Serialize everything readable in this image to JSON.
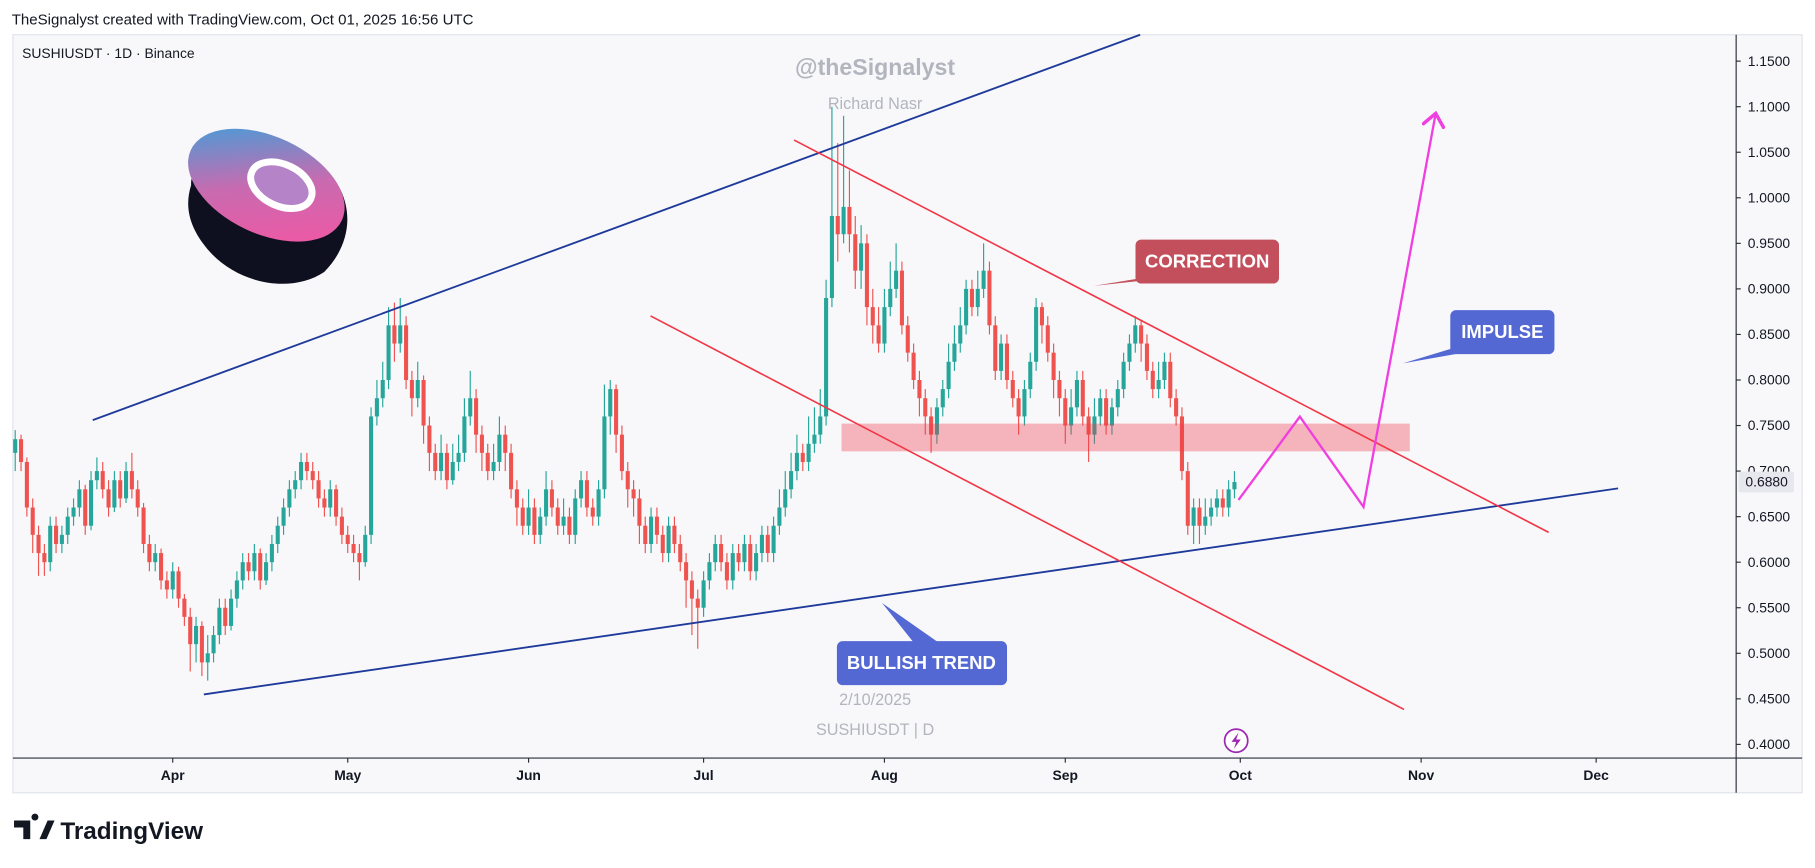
{
  "header": "TheSignalyst created with TradingView.com, Oct 01, 2025 16:56 UTC",
  "footer_logo": "TradingView",
  "chart_data": {
    "type": "candlestick",
    "symbol": "SUSHIUSDT · 1D · Binance",
    "watermark": "@theSignalyst",
    "author": "Richard Nasr",
    "date_stamp": "2/10/2025",
    "symbol_stamp": "SUSHIUSDT | D",
    "annotations": [
      "CORRECTION",
      "IMPULSE",
      "BULLISH TREND"
    ],
    "up_color": "#26a69a",
    "down_color": "#ef5350",
    "xlim": [
      -27.4,
      268
    ],
    "xticks": [
      {
        "value": 0,
        "label": "Apr"
      },
      {
        "value": 30,
        "label": "May"
      },
      {
        "value": 61,
        "label": "Jun"
      },
      {
        "value": 91,
        "label": "Jul"
      },
      {
        "value": 122,
        "label": "Aug"
      },
      {
        "value": 153,
        "label": "Sep"
      },
      {
        "value": 183,
        "label": "Oct"
      },
      {
        "value": 214,
        "label": "Nov"
      },
      {
        "value": 244,
        "label": "Dec"
      }
    ],
    "ylim": [
      0.385,
      1.179
    ],
    "yticks": [
      {
        "value": 0.4,
        "label": "0.4000"
      },
      {
        "value": 0.45,
        "label": "0.4500"
      },
      {
        "value": 0.5,
        "label": "0.5000"
      },
      {
        "value": 0.55,
        "label": "0.5500"
      },
      {
        "value": 0.6,
        "label": "0.6000"
      },
      {
        "value": 0.65,
        "label": "0.6500"
      },
      {
        "value": 0.7,
        "label": "0.7000"
      },
      {
        "value": 0.75,
        "label": "0.7500"
      },
      {
        "value": 0.8,
        "label": "0.8000"
      },
      {
        "value": 0.85,
        "label": "0.8500"
      },
      {
        "value": 0.9,
        "label": "0.9000"
      },
      {
        "value": 0.95,
        "label": "0.9500"
      },
      {
        "value": 1.0,
        "label": "1.0000"
      },
      {
        "value": 1.05,
        "label": "1.0500"
      },
      {
        "value": 1.1,
        "label": "1.1000"
      },
      {
        "value": 1.15,
        "label": "1.1500"
      }
    ],
    "last_price": {
      "value": 0.688,
      "label": "0.6880"
    },
    "x": [
      -27,
      -26,
      -25,
      -24,
      -23,
      -22,
      -21,
      -20,
      -19,
      -18,
      -17,
      -16,
      -15,
      -14,
      -13,
      -12,
      -11,
      -10,
      -9,
      -8,
      -7,
      -6,
      -5,
      -4,
      -3,
      -2,
      -1,
      0,
      1,
      2,
      3,
      4,
      5,
      6,
      7,
      8,
      9,
      10,
      11,
      12,
      13,
      14,
      15,
      16,
      17,
      18,
      19,
      20,
      21,
      22,
      23,
      24,
      25,
      26,
      27,
      28,
      29,
      30,
      31,
      32,
      33,
      34,
      35,
      36,
      37,
      38,
      39,
      40,
      41,
      42,
      43,
      44,
      45,
      46,
      47,
      48,
      49,
      50,
      51,
      52,
      53,
      54,
      55,
      56,
      57,
      58,
      59,
      60,
      61,
      62,
      63,
      64,
      65,
      66,
      67,
      68,
      69,
      70,
      71,
      72,
      73,
      74,
      75,
      76,
      77,
      78,
      79,
      80,
      81,
      82,
      83,
      84,
      85,
      86,
      87,
      88,
      89,
      90,
      91,
      92,
      93,
      94,
      95,
      96,
      97,
      98,
      99,
      100,
      101,
      102,
      103,
      104,
      105,
      106,
      107,
      108,
      109,
      110,
      111,
      112,
      113,
      114,
      115,
      116,
      117,
      118,
      119,
      120,
      121,
      122,
      123,
      124,
      125,
      126,
      127,
      128,
      129,
      130,
      131,
      132,
      133,
      134,
      135,
      136,
      137,
      138,
      139,
      140,
      141,
      142,
      143,
      144,
      145,
      146,
      147,
      148,
      149,
      150,
      151,
      152,
      153,
      154,
      155,
      156,
      157,
      158,
      159,
      160,
      161,
      162,
      163,
      164,
      165,
      166,
      167,
      168,
      169,
      170,
      171,
      172,
      173,
      174,
      175,
      176,
      177,
      178,
      179,
      180,
      181,
      182
    ],
    "ohlc": [
      [
        0.72,
        0.745,
        0.7,
        0.735
      ],
      [
        0.735,
        0.74,
        0.7,
        0.71
      ],
      [
        0.71,
        0.715,
        0.65,
        0.66
      ],
      [
        0.66,
        0.67,
        0.61,
        0.63
      ],
      [
        0.63,
        0.64,
        0.585,
        0.61
      ],
      [
        0.61,
        0.62,
        0.585,
        0.6
      ],
      [
        0.6,
        0.65,
        0.59,
        0.64
      ],
      [
        0.64,
        0.65,
        0.61,
        0.62
      ],
      [
        0.62,
        0.64,
        0.61,
        0.63
      ],
      [
        0.63,
        0.66,
        0.62,
        0.65
      ],
      [
        0.65,
        0.67,
        0.64,
        0.66
      ],
      [
        0.66,
        0.69,
        0.65,
        0.68
      ],
      [
        0.68,
        0.685,
        0.63,
        0.64
      ],
      [
        0.64,
        0.7,
        0.635,
        0.69
      ],
      [
        0.69,
        0.715,
        0.68,
        0.7
      ],
      [
        0.7,
        0.71,
        0.67,
        0.68
      ],
      [
        0.68,
        0.69,
        0.65,
        0.66
      ],
      [
        0.66,
        0.7,
        0.655,
        0.69
      ],
      [
        0.69,
        0.7,
        0.66,
        0.67
      ],
      [
        0.67,
        0.71,
        0.665,
        0.7
      ],
      [
        0.7,
        0.72,
        0.67,
        0.68
      ],
      [
        0.68,
        0.69,
        0.65,
        0.66
      ],
      [
        0.66,
        0.665,
        0.61,
        0.62
      ],
      [
        0.62,
        0.63,
        0.59,
        0.6
      ],
      [
        0.6,
        0.62,
        0.59,
        0.61
      ],
      [
        0.61,
        0.615,
        0.57,
        0.58
      ],
      [
        0.58,
        0.59,
        0.56,
        0.57
      ],
      [
        0.57,
        0.6,
        0.56,
        0.59
      ],
      [
        0.59,
        0.595,
        0.55,
        0.56
      ],
      [
        0.56,
        0.565,
        0.53,
        0.54
      ],
      [
        0.54,
        0.55,
        0.48,
        0.51
      ],
      [
        0.51,
        0.54,
        0.49,
        0.53
      ],
      [
        0.53,
        0.535,
        0.475,
        0.49
      ],
      [
        0.49,
        0.52,
        0.47,
        0.5
      ],
      [
        0.5,
        0.53,
        0.49,
        0.52
      ],
      [
        0.52,
        0.56,
        0.51,
        0.55
      ],
      [
        0.55,
        0.56,
        0.52,
        0.53
      ],
      [
        0.53,
        0.57,
        0.525,
        0.56
      ],
      [
        0.56,
        0.59,
        0.55,
        0.58
      ],
      [
        0.58,
        0.61,
        0.57,
        0.6
      ],
      [
        0.6,
        0.61,
        0.58,
        0.59
      ],
      [
        0.59,
        0.62,
        0.58,
        0.61
      ],
      [
        0.61,
        0.615,
        0.57,
        0.58
      ],
      [
        0.58,
        0.61,
        0.575,
        0.6
      ],
      [
        0.6,
        0.63,
        0.59,
        0.62
      ],
      [
        0.62,
        0.65,
        0.61,
        0.64
      ],
      [
        0.64,
        0.67,
        0.63,
        0.66
      ],
      [
        0.66,
        0.69,
        0.65,
        0.68
      ],
      [
        0.68,
        0.7,
        0.67,
        0.69
      ],
      [
        0.69,
        0.72,
        0.68,
        0.71
      ],
      [
        0.71,
        0.72,
        0.69,
        0.7
      ],
      [
        0.7,
        0.71,
        0.68,
        0.69
      ],
      [
        0.69,
        0.7,
        0.66,
        0.67
      ],
      [
        0.67,
        0.68,
        0.65,
        0.66
      ],
      [
        0.66,
        0.69,
        0.65,
        0.68
      ],
      [
        0.68,
        0.685,
        0.64,
        0.65
      ],
      [
        0.65,
        0.66,
        0.62,
        0.63
      ],
      [
        0.63,
        0.64,
        0.61,
        0.62
      ],
      [
        0.62,
        0.63,
        0.6,
        0.61
      ],
      [
        0.61,
        0.62,
        0.58,
        0.6
      ],
      [
        0.6,
        0.64,
        0.595,
        0.63
      ],
      [
        0.63,
        0.77,
        0.62,
        0.76
      ],
      [
        0.76,
        0.8,
        0.75,
        0.78
      ],
      [
        0.78,
        0.82,
        0.77,
        0.8
      ],
      [
        0.8,
        0.88,
        0.79,
        0.86
      ],
      [
        0.86,
        0.885,
        0.82,
        0.84
      ],
      [
        0.84,
        0.89,
        0.83,
        0.86
      ],
      [
        0.86,
        0.87,
        0.79,
        0.8
      ],
      [
        0.8,
        0.81,
        0.76,
        0.78
      ],
      [
        0.78,
        0.82,
        0.77,
        0.8
      ],
      [
        0.8,
        0.805,
        0.73,
        0.75
      ],
      [
        0.75,
        0.76,
        0.7,
        0.72
      ],
      [
        0.72,
        0.73,
        0.69,
        0.7
      ],
      [
        0.7,
        0.74,
        0.69,
        0.72
      ],
      [
        0.72,
        0.73,
        0.68,
        0.69
      ],
      [
        0.69,
        0.73,
        0.685,
        0.71
      ],
      [
        0.71,
        0.74,
        0.7,
        0.72
      ],
      [
        0.72,
        0.78,
        0.71,
        0.76
      ],
      [
        0.76,
        0.81,
        0.75,
        0.78
      ],
      [
        0.78,
        0.79,
        0.72,
        0.74
      ],
      [
        0.74,
        0.75,
        0.7,
        0.72
      ],
      [
        0.72,
        0.73,
        0.69,
        0.7
      ],
      [
        0.7,
        0.73,
        0.69,
        0.71
      ],
      [
        0.71,
        0.76,
        0.7,
        0.74
      ],
      [
        0.74,
        0.75,
        0.7,
        0.72
      ],
      [
        0.72,
        0.73,
        0.67,
        0.68
      ],
      [
        0.68,
        0.69,
        0.64,
        0.66
      ],
      [
        0.66,
        0.67,
        0.63,
        0.64
      ],
      [
        0.64,
        0.68,
        0.63,
        0.66
      ],
      [
        0.66,
        0.67,
        0.62,
        0.63
      ],
      [
        0.63,
        0.66,
        0.62,
        0.65
      ],
      [
        0.65,
        0.7,
        0.64,
        0.68
      ],
      [
        0.68,
        0.69,
        0.65,
        0.66
      ],
      [
        0.66,
        0.67,
        0.63,
        0.64
      ],
      [
        0.64,
        0.67,
        0.63,
        0.65
      ],
      [
        0.65,
        0.66,
        0.62,
        0.63
      ],
      [
        0.63,
        0.68,
        0.62,
        0.67
      ],
      [
        0.67,
        0.7,
        0.66,
        0.69
      ],
      [
        0.69,
        0.7,
        0.65,
        0.66
      ],
      [
        0.66,
        0.67,
        0.64,
        0.65
      ],
      [
        0.65,
        0.69,
        0.64,
        0.68
      ],
      [
        0.68,
        0.795,
        0.67,
        0.76
      ],
      [
        0.76,
        0.8,
        0.74,
        0.79
      ],
      [
        0.79,
        0.795,
        0.72,
        0.74
      ],
      [
        0.74,
        0.75,
        0.69,
        0.7
      ],
      [
        0.7,
        0.71,
        0.66,
        0.68
      ],
      [
        0.68,
        0.69,
        0.65,
        0.67
      ],
      [
        0.67,
        0.68,
        0.62,
        0.64
      ],
      [
        0.64,
        0.65,
        0.61,
        0.62
      ],
      [
        0.62,
        0.66,
        0.61,
        0.65
      ],
      [
        0.65,
        0.66,
        0.62,
        0.63
      ],
      [
        0.63,
        0.64,
        0.6,
        0.61
      ],
      [
        0.61,
        0.65,
        0.6,
        0.64
      ],
      [
        0.64,
        0.65,
        0.61,
        0.62
      ],
      [
        0.62,
        0.63,
        0.59,
        0.6
      ],
      [
        0.6,
        0.61,
        0.55,
        0.58
      ],
      [
        0.58,
        0.59,
        0.52,
        0.56
      ],
      [
        0.56,
        0.57,
        0.505,
        0.55
      ],
      [
        0.55,
        0.59,
        0.54,
        0.58
      ],
      [
        0.58,
        0.61,
        0.57,
        0.6
      ],
      [
        0.6,
        0.63,
        0.59,
        0.62
      ],
      [
        0.62,
        0.63,
        0.59,
        0.6
      ],
      [
        0.6,
        0.61,
        0.57,
        0.58
      ],
      [
        0.58,
        0.62,
        0.57,
        0.61
      ],
      [
        0.61,
        0.62,
        0.59,
        0.6
      ],
      [
        0.6,
        0.63,
        0.59,
        0.62
      ],
      [
        0.62,
        0.63,
        0.58,
        0.59
      ],
      [
        0.59,
        0.62,
        0.58,
        0.61
      ],
      [
        0.61,
        0.64,
        0.6,
        0.63
      ],
      [
        0.63,
        0.64,
        0.6,
        0.61
      ],
      [
        0.61,
        0.65,
        0.6,
        0.64
      ],
      [
        0.64,
        0.68,
        0.63,
        0.66
      ],
      [
        0.66,
        0.7,
        0.65,
        0.68
      ],
      [
        0.68,
        0.72,
        0.67,
        0.7
      ],
      [
        0.7,
        0.74,
        0.69,
        0.72
      ],
      [
        0.72,
        0.73,
        0.7,
        0.71
      ],
      [
        0.71,
        0.76,
        0.7,
        0.73
      ],
      [
        0.73,
        0.77,
        0.72,
        0.74
      ],
      [
        0.74,
        0.79,
        0.73,
        0.76
      ],
      [
        0.76,
        0.91,
        0.75,
        0.89
      ],
      [
        0.89,
        1.1,
        0.88,
        0.98
      ],
      [
        0.98,
        1.06,
        0.93,
        0.96
      ],
      [
        0.96,
        1.09,
        0.95,
        0.99
      ],
      [
        0.99,
        1.03,
        0.94,
        0.96
      ],
      [
        0.96,
        0.98,
        0.9,
        0.92
      ],
      [
        0.92,
        0.97,
        0.9,
        0.95
      ],
      [
        0.95,
        0.96,
        0.86,
        0.88
      ],
      [
        0.88,
        0.9,
        0.84,
        0.86
      ],
      [
        0.86,
        0.88,
        0.83,
        0.84
      ],
      [
        0.84,
        0.9,
        0.83,
        0.88
      ],
      [
        0.88,
        0.93,
        0.87,
        0.9
      ],
      [
        0.9,
        0.95,
        0.89,
        0.92
      ],
      [
        0.92,
        0.93,
        0.85,
        0.86
      ],
      [
        0.86,
        0.87,
        0.82,
        0.83
      ],
      [
        0.83,
        0.84,
        0.79,
        0.8
      ],
      [
        0.8,
        0.81,
        0.76,
        0.78
      ],
      [
        0.78,
        0.79,
        0.74,
        0.76
      ],
      [
        0.76,
        0.77,
        0.72,
        0.74
      ],
      [
        0.74,
        0.78,
        0.73,
        0.77
      ],
      [
        0.77,
        0.8,
        0.76,
        0.79
      ],
      [
        0.79,
        0.84,
        0.78,
        0.82
      ],
      [
        0.82,
        0.86,
        0.81,
        0.84
      ],
      [
        0.84,
        0.88,
        0.83,
        0.86
      ],
      [
        0.86,
        0.91,
        0.85,
        0.9
      ],
      [
        0.9,
        0.91,
        0.87,
        0.88
      ],
      [
        0.88,
        0.92,
        0.87,
        0.9
      ],
      [
        0.9,
        0.95,
        0.89,
        0.92
      ],
      [
        0.92,
        0.93,
        0.85,
        0.86
      ],
      [
        0.86,
        0.87,
        0.8,
        0.81
      ],
      [
        0.81,
        0.85,
        0.8,
        0.84
      ],
      [
        0.84,
        0.85,
        0.79,
        0.8
      ],
      [
        0.8,
        0.81,
        0.77,
        0.78
      ],
      [
        0.78,
        0.79,
        0.74,
        0.76
      ],
      [
        0.76,
        0.8,
        0.75,
        0.79
      ],
      [
        0.79,
        0.83,
        0.78,
        0.82
      ],
      [
        0.82,
        0.89,
        0.81,
        0.88
      ],
      [
        0.88,
        0.885,
        0.84,
        0.86
      ],
      [
        0.86,
        0.87,
        0.82,
        0.83
      ],
      [
        0.83,
        0.84,
        0.78,
        0.8
      ],
      [
        0.8,
        0.81,
        0.76,
        0.78
      ],
      [
        0.78,
        0.79,
        0.73,
        0.75
      ],
      [
        0.75,
        0.79,
        0.74,
        0.77
      ],
      [
        0.77,
        0.81,
        0.76,
        0.8
      ],
      [
        0.8,
        0.81,
        0.75,
        0.76
      ],
      [
        0.76,
        0.77,
        0.71,
        0.74
      ],
      [
        0.74,
        0.78,
        0.73,
        0.76
      ],
      [
        0.76,
        0.79,
        0.75,
        0.78
      ],
      [
        0.78,
        0.79,
        0.74,
        0.75
      ],
      [
        0.75,
        0.78,
        0.74,
        0.77
      ],
      [
        0.77,
        0.8,
        0.76,
        0.79
      ],
      [
        0.79,
        0.83,
        0.78,
        0.82
      ],
      [
        0.82,
        0.85,
        0.81,
        0.84
      ],
      [
        0.84,
        0.87,
        0.83,
        0.86
      ],
      [
        0.86,
        0.865,
        0.82,
        0.84
      ],
      [
        0.84,
        0.85,
        0.8,
        0.81
      ],
      [
        0.81,
        0.82,
        0.78,
        0.79
      ],
      [
        0.79,
        0.82,
        0.78,
        0.8
      ],
      [
        0.8,
        0.83,
        0.79,
        0.82
      ],
      [
        0.82,
        0.83,
        0.77,
        0.78
      ],
      [
        0.78,
        0.79,
        0.75,
        0.76
      ],
      [
        0.76,
        0.77,
        0.69,
        0.7
      ],
      [
        0.7,
        0.71,
        0.63,
        0.64
      ],
      [
        0.64,
        0.67,
        0.62,
        0.66
      ],
      [
        0.66,
        0.67,
        0.62,
        0.64
      ],
      [
        0.64,
        0.67,
        0.63,
        0.65
      ],
      [
        0.65,
        0.67,
        0.64,
        0.66
      ],
      [
        0.66,
        0.68,
        0.65,
        0.67
      ],
      [
        0.67,
        0.68,
        0.65,
        0.66
      ],
      [
        0.66,
        0.69,
        0.65,
        0.68
      ],
      [
        0.68,
        0.7,
        0.67,
        0.688
      ]
    ]
  }
}
